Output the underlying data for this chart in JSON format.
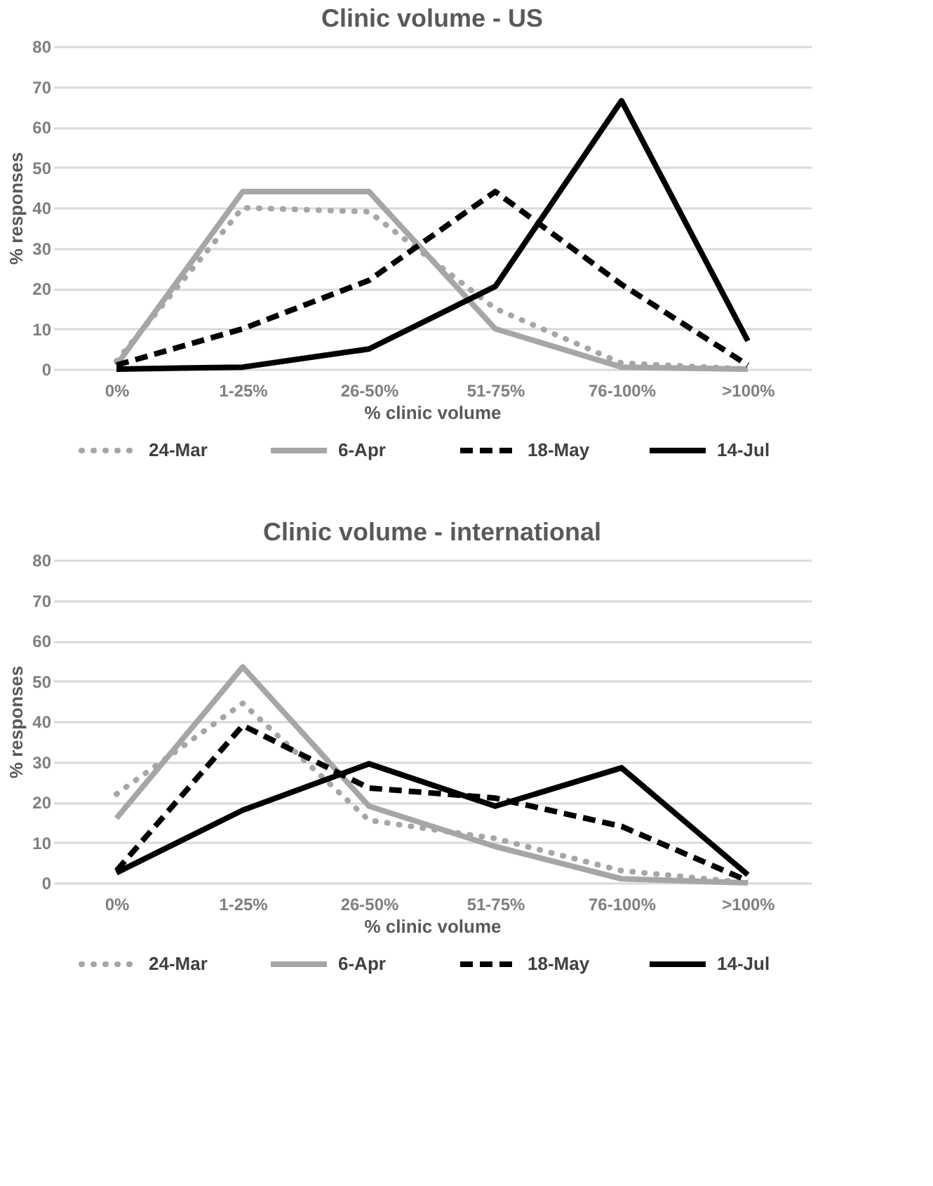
{
  "chart_data": [
    {
      "type": "line",
      "title": "Clinic volume - US",
      "xlabel": "% clinic volume",
      "ylabel": "% responses",
      "categories": [
        "0%",
        "1-25%",
        "26-50%",
        "51-75%",
        "76-100%",
        ">100%"
      ],
      "ylim": [
        0,
        80
      ],
      "yticks": [
        0,
        10,
        20,
        30,
        40,
        50,
        60,
        70,
        80
      ],
      "grid": "y",
      "legend": "bottom",
      "marker": "none",
      "series": [
        {
          "name": "24-Mar",
          "color": "#a6a6a6",
          "line_style": "dotted",
          "values": [
            2,
            40,
            39,
            15,
            1.5,
            0
          ]
        },
        {
          "name": "6-Apr",
          "color": "#a6a6a6",
          "line_style": "solid",
          "values": [
            1,
            44,
            44,
            10,
            0.5,
            0
          ]
        },
        {
          "name": "18-May",
          "color": "#000000",
          "line_style": "dashed",
          "values": [
            1,
            10,
            22,
            44,
            21,
            1
          ]
        },
        {
          "name": "14-Jul",
          "color": "#000000",
          "line_style": "solid",
          "values": [
            0,
            0.5,
            5,
            20.5,
            66.5,
            7
          ]
        }
      ]
    },
    {
      "type": "line",
      "title": "Clinic volume - international",
      "xlabel": "% clinic volume",
      "ylabel": "% responses",
      "categories": [
        "0%",
        "1-25%",
        "26-50%",
        "51-75%",
        "76-100%",
        ">100%"
      ],
      "ylim": [
        0,
        80
      ],
      "yticks": [
        0,
        10,
        20,
        30,
        40,
        50,
        60,
        70,
        80
      ],
      "grid": "y",
      "legend": "bottom",
      "marker": "none",
      "series": [
        {
          "name": "24-Mar",
          "color": "#a6a6a6",
          "line_style": "dotted",
          "values": [
            22,
            44.5,
            15.5,
            11,
            3,
            0
          ]
        },
        {
          "name": "6-Apr",
          "color": "#a6a6a6",
          "line_style": "solid",
          "values": [
            16,
            53.5,
            19,
            9,
            1,
            0
          ]
        },
        {
          "name": "18-May",
          "color": "#000000",
          "line_style": "dashed",
          "values": [
            3,
            39,
            23.5,
            21,
            14,
            0.5
          ]
        },
        {
          "name": "14-Jul",
          "color": "#000000",
          "line_style": "solid",
          "values": [
            2.5,
            18,
            29.5,
            19,
            28.5,
            2
          ]
        }
      ]
    }
  ]
}
